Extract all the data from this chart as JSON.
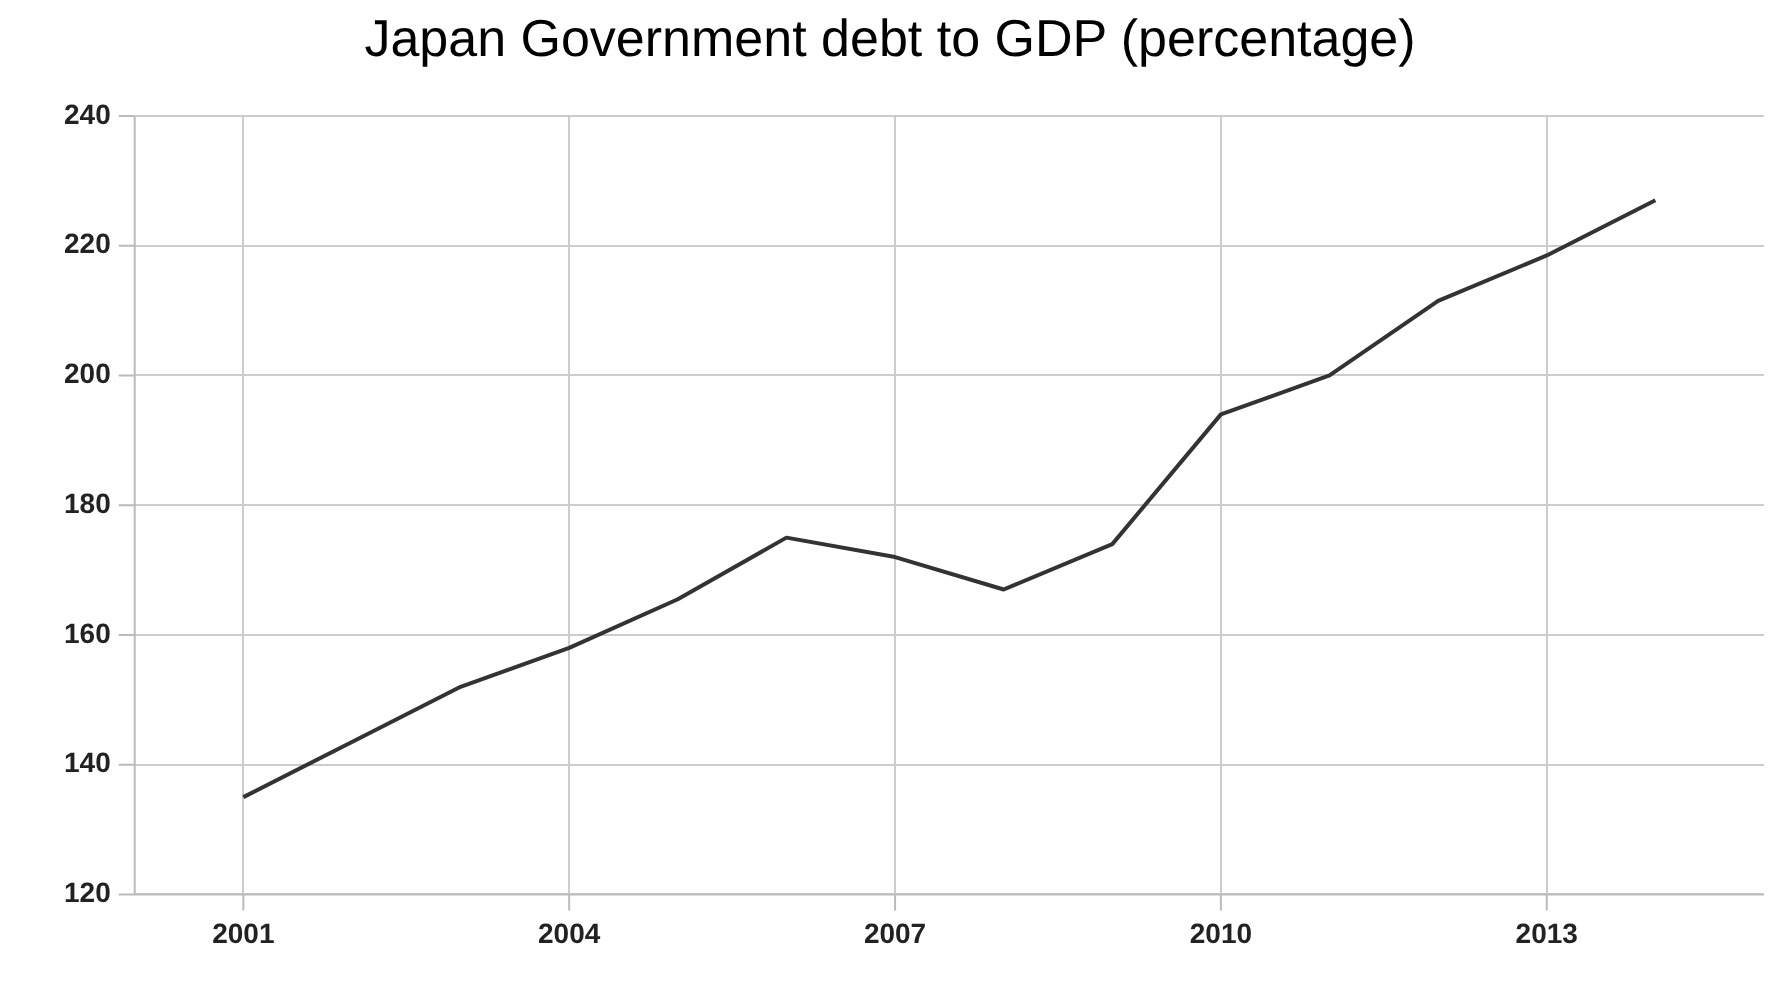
{
  "chart_data": {
    "type": "line",
    "title": "Japan Government debt to GDP (percentage)",
    "x": [
      2001,
      2002,
      2003,
      2004,
      2005,
      2006,
      2007,
      2008,
      2009,
      2010,
      2011,
      2012,
      2013,
      2014
    ],
    "series": [
      {
        "color": "#333333",
        "values": [
          135,
          143.5,
          152,
          158,
          165.5,
          175,
          172,
          167,
          174,
          194,
          200,
          211.5,
          218.5,
          227
        ]
      }
    ],
    "xlim": [
      2000,
      2015
    ],
    "xticks": [
      2001,
      2004,
      2007,
      2010,
      2013
    ],
    "ylim": [
      120,
      240
    ],
    "yticks": [
      120,
      140,
      160,
      180,
      200,
      220,
      240
    ],
    "grid": true,
    "legend": false,
    "marker": "none",
    "line_style": "solid"
  }
}
